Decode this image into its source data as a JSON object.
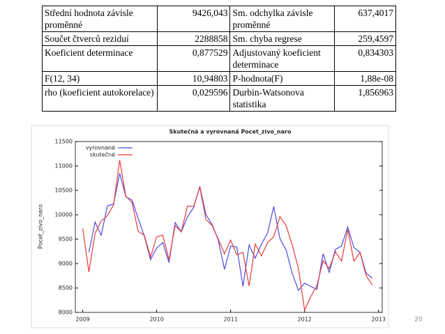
{
  "table": {
    "rows": [
      [
        "Střední hodnota závisle proměnné",
        "9426,043",
        "Sm. odchylka závisle proměnné",
        "637,4017"
      ],
      [
        "Součet čtverců reziduí",
        "2288858",
        "Sm. chyba regrese",
        "259,4597"
      ],
      [
        "Koeficient determinace",
        "0,877529",
        "Adjustovaný koeficient determinace",
        "0,834303"
      ],
      [
        "F(12, 34)",
        "10,94803",
        "P-hodnota(F)",
        "1,88e-08"
      ],
      [
        "rho (koeficient autokorelace)",
        "0,029596",
        "Durbin-Watsonova statistika",
        "1,856963"
      ]
    ]
  },
  "chart_data": {
    "type": "line",
    "title": "Skutečná a vyrovnaná Pocet_zivo_naro",
    "ylabel": "Pocet_zivo_naro",
    "x": [
      2009,
      2009.083,
      2009.167,
      2009.25,
      2009.333,
      2009.417,
      2009.5,
      2009.583,
      2009.667,
      2009.75,
      2009.833,
      2009.917,
      2010,
      2010.083,
      2010.167,
      2010.25,
      2010.333,
      2010.417,
      2010.5,
      2010.583,
      2010.667,
      2010.75,
      2010.833,
      2010.917,
      2011,
      2011.083,
      2011.167,
      2011.25,
      2011.333,
      2011.417,
      2011.5,
      2011.583,
      2011.667,
      2011.75,
      2011.833,
      2011.917,
      2012,
      2012.083,
      2012.167,
      2012.25,
      2012.333,
      2012.417,
      2012.5,
      2012.583,
      2012.667,
      2012.75,
      2012.833,
      2012.917
    ],
    "series": [
      {
        "name": "vyrovnané",
        "color": "#4a4ae6",
        "values": [
          null,
          9230,
          9850,
          9580,
          10180,
          10220,
          10850,
          10370,
          10300,
          9920,
          9560,
          9080,
          9320,
          9430,
          9020,
          9840,
          9650,
          9960,
          10150,
          10580,
          10000,
          9800,
          9480,
          8880,
          9360,
          9340,
          8530,
          9380,
          9110,
          9400,
          9630,
          10170,
          9510,
          9280,
          8800,
          8450,
          8600,
          8530,
          8470,
          9200,
          8820,
          9290,
          9360,
          9750,
          9330,
          9230,
          8800,
          8700
        ]
      },
      {
        "name": "skutečné",
        "color": "#e63a3a",
        "values": [
          9720,
          8830,
          9620,
          9870,
          9980,
          10200,
          11120,
          10380,
          10250,
          9660,
          9580,
          9130,
          9550,
          9580,
          9080,
          9780,
          9650,
          10180,
          10170,
          10570,
          9900,
          9780,
          9500,
          9200,
          9480,
          9180,
          9230,
          8540,
          9400,
          9160,
          9430,
          9550,
          9960,
          9780,
          9380,
          8900,
          8050,
          8320,
          8550,
          9060,
          8900,
          9240,
          9050,
          9700,
          9050,
          9230,
          8750,
          8560
        ]
      }
    ],
    "xlim": [
      2008.9,
      2013.05
    ],
    "xticks": [
      2009,
      2010,
      2011,
      2012,
      2013
    ],
    "ylim": [
      8000,
      11500
    ],
    "yticks": [
      8000,
      8500,
      9000,
      9500,
      10000,
      10500,
      11000,
      11500
    ],
    "grid": false
  },
  "page_number": "20"
}
